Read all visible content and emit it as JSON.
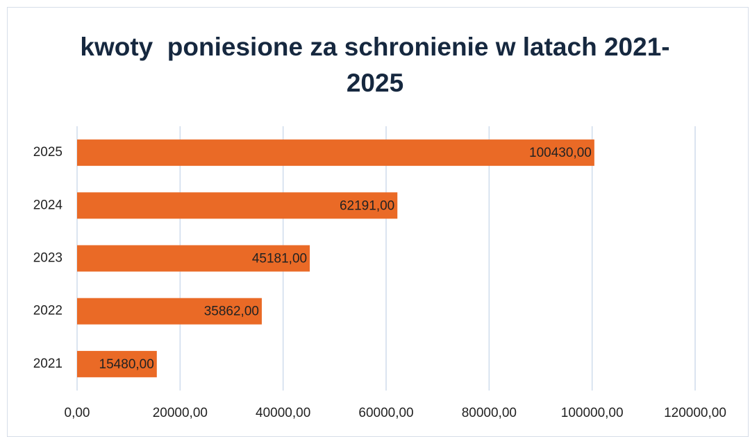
{
  "chart_data": {
    "type": "bar",
    "orientation": "horizontal",
    "title": "kwoty  poniesione za schronienie w latach 2021-2025",
    "categories": [
      "2021",
      "2022",
      "2023",
      "2024",
      "2025"
    ],
    "values": [
      15480,
      35862,
      45181,
      62191,
      100430
    ],
    "value_labels": [
      "15480,00",
      "35862,00",
      "45181,00",
      "62191,00",
      "100430,00"
    ],
    "color": "#ea6a26",
    "xlim": [
      0,
      120000
    ],
    "xticks": [
      {
        "value": 0,
        "label": "0,00"
      },
      {
        "value": 20000,
        "label": "20000,00"
      },
      {
        "value": 40000,
        "label": "40000,00"
      },
      {
        "value": 60000,
        "label": "60000,00"
      },
      {
        "value": 80000,
        "label": "80000,00"
      },
      {
        "value": 100000,
        "label": "100000,00"
      },
      {
        "value": 120000,
        "label": "120000,00"
      }
    ],
    "grid": true
  }
}
